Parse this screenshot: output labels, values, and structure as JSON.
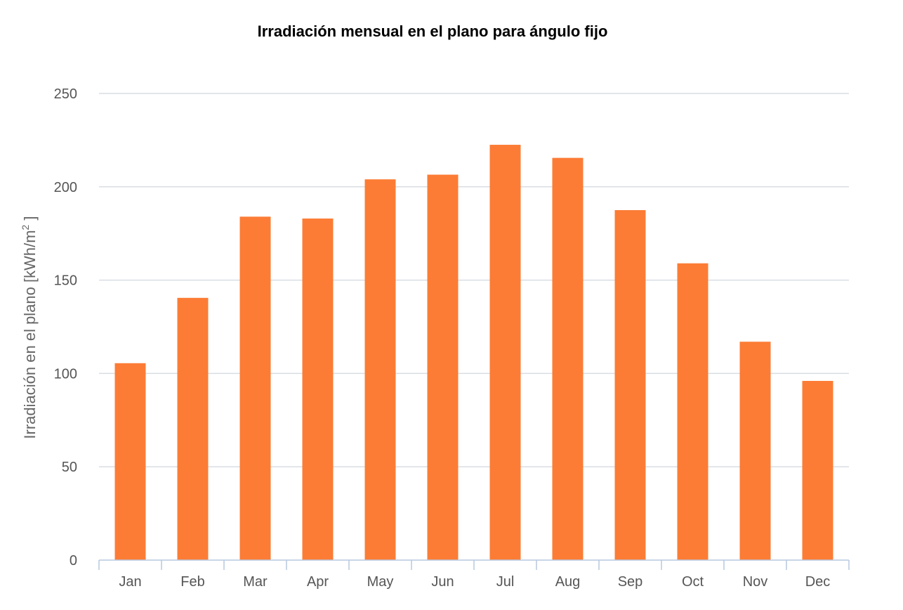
{
  "chart_data": {
    "type": "bar",
    "title": "Irradiación mensual en el plano para ángulo fijo",
    "xlabel": "",
    "ylabel": "Irradiación en el plano [kWh/m",
    "ylabel_superscript": "2",
    "ylabel_suffix": " ]",
    "categories": [
      "Jan",
      "Feb",
      "Mar",
      "Apr",
      "May",
      "Jun",
      "Jul",
      "Aug",
      "Sep",
      "Oct",
      "Nov",
      "Dec"
    ],
    "series": [
      {
        "values": [
          105.5,
          140.5,
          184,
          183,
          204,
          206.5,
          222.5,
          215.5,
          187.5,
          159,
          117,
          96
        ]
      }
    ],
    "ylim": [
      0,
      250
    ],
    "yticks": [
      0,
      50,
      100,
      150,
      200,
      250
    ],
    "yticks_labels": [
      "0",
      "50",
      "100",
      "150",
      "200",
      "250"
    ],
    "grid": true,
    "legend": "none",
    "colors": {
      "bar": "#fc7c35",
      "grid": "#d8dde3",
      "axis": "#b7c9e0"
    }
  }
}
